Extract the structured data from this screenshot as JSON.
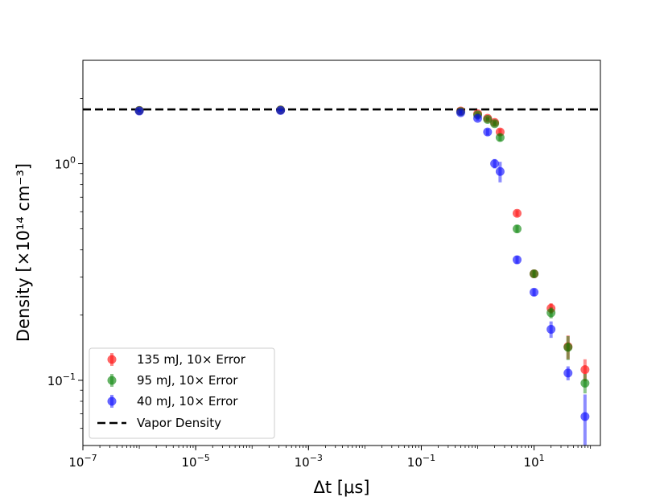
{
  "chart_data": {
    "type": "scatter",
    "title": "",
    "xlabel": "Δt [μs]",
    "ylabel": "Density [×10¹⁴ cm⁻³]",
    "xscale": "log",
    "yscale": "log",
    "xlim": [
      1e-07,
      150
    ],
    "ylim": [
      0.05,
      3.0
    ],
    "x_ticks": [
      {
        "value": 1e-07,
        "base": "10",
        "exp": "−7"
      },
      {
        "value": 1e-05,
        "base": "10",
        "exp": "−5"
      },
      {
        "value": 0.001,
        "base": "10",
        "exp": "−3"
      },
      {
        "value": 0.1,
        "base": "10",
        "exp": "−1"
      },
      {
        "value": 10,
        "base": "10",
        "exp": "1"
      }
    ],
    "y_ticks": [
      {
        "value": 1.0,
        "base": "10",
        "exp": "0"
      },
      {
        "value": 0.1,
        "base": "10",
        "exp": "−1"
      }
    ],
    "reference_line": {
      "name": "Vapor Density",
      "y": 1.78,
      "color": "#000000",
      "style": "dashed"
    },
    "series": [
      {
        "name": "135 mJ, 10× Error",
        "color": "#ff0000",
        "x": [
          1e-06,
          0.00032,
          0.5,
          1.0,
          1.5,
          2.0,
          2.5,
          5,
          10,
          20,
          40,
          80
        ],
        "y": [
          1.76,
          1.77,
          1.75,
          1.7,
          1.62,
          1.55,
          1.4,
          0.59,
          0.31,
          0.215,
          0.143,
          0.112
        ],
        "err": [
          0.02,
          0.02,
          0.03,
          0.03,
          0.03,
          0.04,
          0.05,
          0.02,
          0.012,
          0.012,
          0.018,
          0.013
        ]
      },
      {
        "name": "95 mJ, 10× Error",
        "color": "#008000",
        "x": [
          1e-06,
          0.00032,
          0.5,
          1.0,
          1.5,
          2.0,
          2.5,
          5,
          10,
          20,
          40,
          80
        ],
        "y": [
          1.76,
          1.77,
          1.74,
          1.68,
          1.6,
          1.53,
          1.32,
          0.5,
          0.31,
          0.205,
          0.142,
          0.097
        ],
        "err": [
          0.02,
          0.02,
          0.03,
          0.03,
          0.03,
          0.04,
          0.05,
          0.02,
          0.012,
          0.012,
          0.018,
          0.01
        ]
      },
      {
        "name": "40 mJ, 10× Error",
        "color": "#0000ff",
        "x": [
          1e-06,
          0.00032,
          0.5,
          1.0,
          1.5,
          2.0,
          2.5,
          5,
          10,
          20,
          40,
          80
        ],
        "y": [
          1.75,
          1.76,
          1.72,
          1.62,
          1.4,
          1.0,
          0.92,
          0.36,
          0.255,
          0.172,
          0.108,
          0.068
        ],
        "err": [
          0.02,
          0.02,
          0.04,
          0.04,
          0.05,
          0.05,
          0.1,
          0.015,
          0.01,
          0.015,
          0.008,
          0.018
        ]
      }
    ],
    "legend": {
      "position": "lower-left"
    }
  }
}
